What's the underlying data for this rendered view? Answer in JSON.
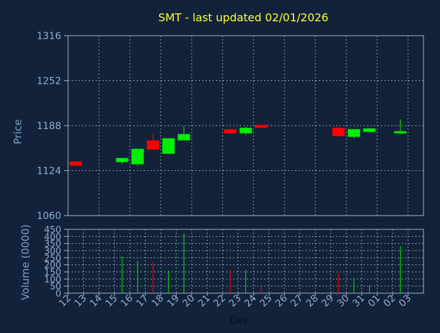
{
  "chart_data": [
    {
      "type": "candlestick",
      "title": "SMT - last updated 02/01/2026",
      "ylabel": "Price",
      "ylim": [
        1060,
        1316
      ],
      "yticks": [
        1316,
        1252,
        1188,
        1124,
        1060
      ],
      "grid": true,
      "categories": [
        "12",
        "13",
        "14",
        "15",
        "16",
        "17",
        "18",
        "19",
        "20",
        "21",
        "22",
        "23",
        "24",
        "25",
        "26",
        "27",
        "28",
        "29",
        "30",
        "31",
        "01",
        "02",
        "03"
      ],
      "candles": [
        {
          "day": "12",
          "open": 1137,
          "high": 1137,
          "low": 1131,
          "close": 1131
        },
        {
          "day": "15",
          "open": 1136,
          "high": 1142,
          "low": 1133,
          "close": 1142
        },
        {
          "day": "16",
          "open": 1133,
          "high": 1155,
          "low": 1130,
          "close": 1155
        },
        {
          "day": "17",
          "open": 1167,
          "high": 1176,
          "low": 1154,
          "close": 1154
        },
        {
          "day": "18",
          "open": 1148,
          "high": 1170,
          "low": 1148,
          "close": 1170
        },
        {
          "day": "19",
          "open": 1167,
          "high": 1187,
          "low": 1167,
          "close": 1176
        },
        {
          "day": "22",
          "open": 1183,
          "high": 1183,
          "low": 1177,
          "close": 1177
        },
        {
          "day": "23",
          "open": 1177,
          "high": 1186,
          "low": 1175,
          "close": 1185
        },
        {
          "day": "24",
          "open": 1189,
          "high": 1190,
          "low": 1184,
          "close": 1185
        },
        {
          "day": "29",
          "open": 1185,
          "high": 1187,
          "low": 1173,
          "close": 1173
        },
        {
          "day": "30",
          "open": 1172,
          "high": 1183,
          "low": 1170,
          "close": 1183
        },
        {
          "day": "31",
          "open": 1179,
          "high": 1185,
          "low": 1179,
          "close": 1184
        },
        {
          "day": "02",
          "open": 1177,
          "high": 1197,
          "low": 1176,
          "close": 1180
        }
      ],
      "colors": {
        "up": "#00ee00",
        "down": "#ff0000"
      }
    },
    {
      "type": "bar",
      "xlabel": "Day",
      "ylabel": "Volume (0000)",
      "ylim": [
        0,
        450
      ],
      "yticks": [
        0,
        50,
        100,
        150,
        200,
        250,
        300,
        350,
        400,
        450
      ],
      "categories": [
        "12",
        "13",
        "14",
        "15",
        "16",
        "17",
        "18",
        "19",
        "20",
        "21",
        "22",
        "23",
        "24",
        "25",
        "26",
        "27",
        "28",
        "29",
        "30",
        "31",
        "01",
        "02",
        "03"
      ],
      "volumes": [
        {
          "day": "15",
          "value": 260,
          "direction": "up"
        },
        {
          "day": "16",
          "value": 230,
          "direction": "up"
        },
        {
          "day": "17",
          "value": 220,
          "direction": "down"
        },
        {
          "day": "18",
          "value": 160,
          "direction": "up"
        },
        {
          "day": "19",
          "value": 420,
          "direction": "up"
        },
        {
          "day": "22",
          "value": 170,
          "direction": "down"
        },
        {
          "day": "23",
          "value": 165,
          "direction": "up"
        },
        {
          "day": "24",
          "value": 50,
          "direction": "down"
        },
        {
          "day": "29",
          "value": 140,
          "direction": "down"
        },
        {
          "day": "30",
          "value": 105,
          "direction": "up"
        },
        {
          "day": "31",
          "value": 55,
          "direction": "up"
        },
        {
          "day": "02",
          "value": 330,
          "direction": "up"
        }
      ]
    }
  ]
}
